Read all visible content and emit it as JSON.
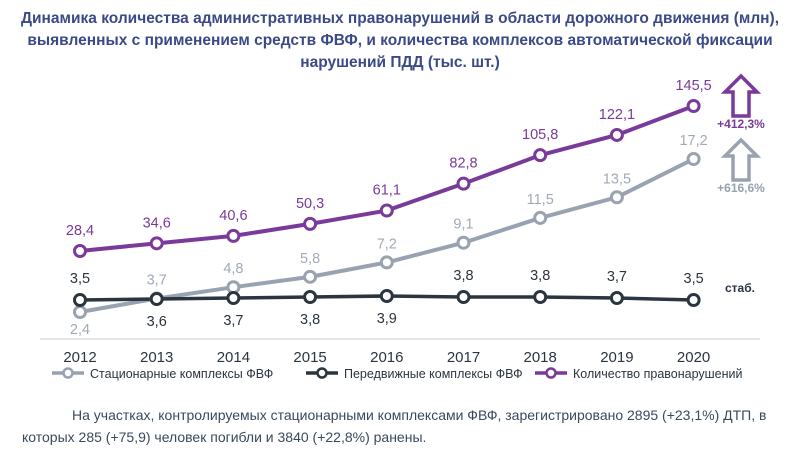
{
  "title": "Динамика количества административных правонарушений в области дорожного движения (млн), выявленных с применением средств ФВФ, и количества комплексов автоматической фиксации нарушений ПДД (тыс. шт.)",
  "footnote": "На участках, контролируемых стационарными комплексами ФВФ, зарегистрировано 2895 (+23,1%) ДТП, в которых 285 (+75,9) человек погибли и 3840 (+22,8%) ранены.",
  "annotations": {
    "offenses_growth": "+412,3%",
    "stationary_growth": "+616,6%",
    "mobile_status": "стаб."
  },
  "colors": {
    "title": "#3b4a86",
    "offenses": "#7a3a9a",
    "stationary": "#98a2b1",
    "mobile": "#2b3540",
    "arrow_offenses": "#7a3a9a",
    "arrow_stationary": "#98a2b1"
  },
  "chart_data": {
    "type": "line",
    "categories": [
      "2012",
      "2013",
      "2014",
      "2015",
      "2016",
      "2017",
      "2018",
      "2019",
      "2020"
    ],
    "series": [
      {
        "key": "offenses",
        "name": "Количество правонарушений",
        "values": [
          28.4,
          34.6,
          40.6,
          50.3,
          61.1,
          82.8,
          105.8,
          122.1,
          145.5
        ],
        "labels": [
          "28,4",
          "34,6",
          "40,6",
          "50,3",
          "61,1",
          "82,8",
          "105,8",
          "122,1",
          "145,5"
        ]
      },
      {
        "key": "stationary",
        "name": "Стационарные комплексы ФВФ",
        "values": [
          2.4,
          3.7,
          4.8,
          5.8,
          7.2,
          9.1,
          11.5,
          13.5,
          17.2
        ],
        "labels": [
          "2,4",
          "3,7",
          "4,8",
          "5,8",
          "7,2",
          "9,1",
          "11,5",
          "13,5",
          "17,2"
        ]
      },
      {
        "key": "mobile",
        "name": "Передвижные комплексы ФВФ",
        "values": [
          3.5,
          3.6,
          3.7,
          3.8,
          3.9,
          3.8,
          3.8,
          3.7,
          3.5
        ],
        "labels": [
          "3,5",
          "3,6",
          "3,7",
          "3,8",
          "3,9",
          "3,8",
          "3,8",
          "3,7",
          "3,5"
        ]
      }
    ],
    "legend_position": "bottom",
    "grid": false
  }
}
